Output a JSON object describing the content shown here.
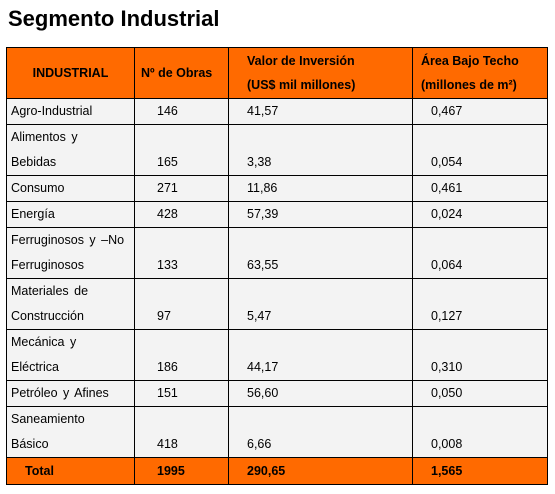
{
  "title": "Segmento Industrial",
  "header": {
    "col1": "INDUSTRIAL",
    "col2": "Nº de Obras",
    "col3_line1": "Valor de Inversión",
    "col3_line2": "(US$ mil millones)",
    "col4_line1": "Área Bajo Techo",
    "col4_line2": "(millones de m²)"
  },
  "rows": [
    {
      "name_lines": [
        "Agro-Industrial"
      ],
      "obras": "146",
      "inversion": "41,57",
      "area": "0,467"
    },
    {
      "name_lines": [
        "Alimentos y",
        "Bebidas"
      ],
      "obras": "165",
      "inversion": "3,38",
      "area": "0,054"
    },
    {
      "name_lines": [
        "Consumo"
      ],
      "obras": "271",
      "inversion": "11,86",
      "area": "0,461"
    },
    {
      "name_lines": [
        "Energía"
      ],
      "obras": "428",
      "inversion": "57,39",
      "area": "0,024"
    },
    {
      "name_lines": [
        "Ferruginosos y –No",
        "Ferruginosos"
      ],
      "obras": "133",
      "inversion": "63,55",
      "area": "0,064"
    },
    {
      "name_lines": [
        "Materiales de",
        "Construcción"
      ],
      "obras": "97",
      "inversion": "5,47",
      "area": "0,127"
    },
    {
      "name_lines": [
        "Mecánica y",
        "Eléctrica"
      ],
      "obras": "186",
      "inversion": "44,17",
      "area": "0,310"
    },
    {
      "name_lines": [
        "Petróleo y Afines"
      ],
      "obras": "151",
      "inversion": "56,60",
      "area": "0,050"
    },
    {
      "name_lines": [
        "Saneamiento",
        "Básico"
      ],
      "obras": "418",
      "inversion": "6,66",
      "area": "0,008"
    }
  ],
  "total": {
    "label": "Total",
    "obras": "1995",
    "inversion": "290,65",
    "area": "1,565"
  },
  "colors": {
    "header_bg": "#ff6a00",
    "cell_bg": "#f3f3f3"
  }
}
